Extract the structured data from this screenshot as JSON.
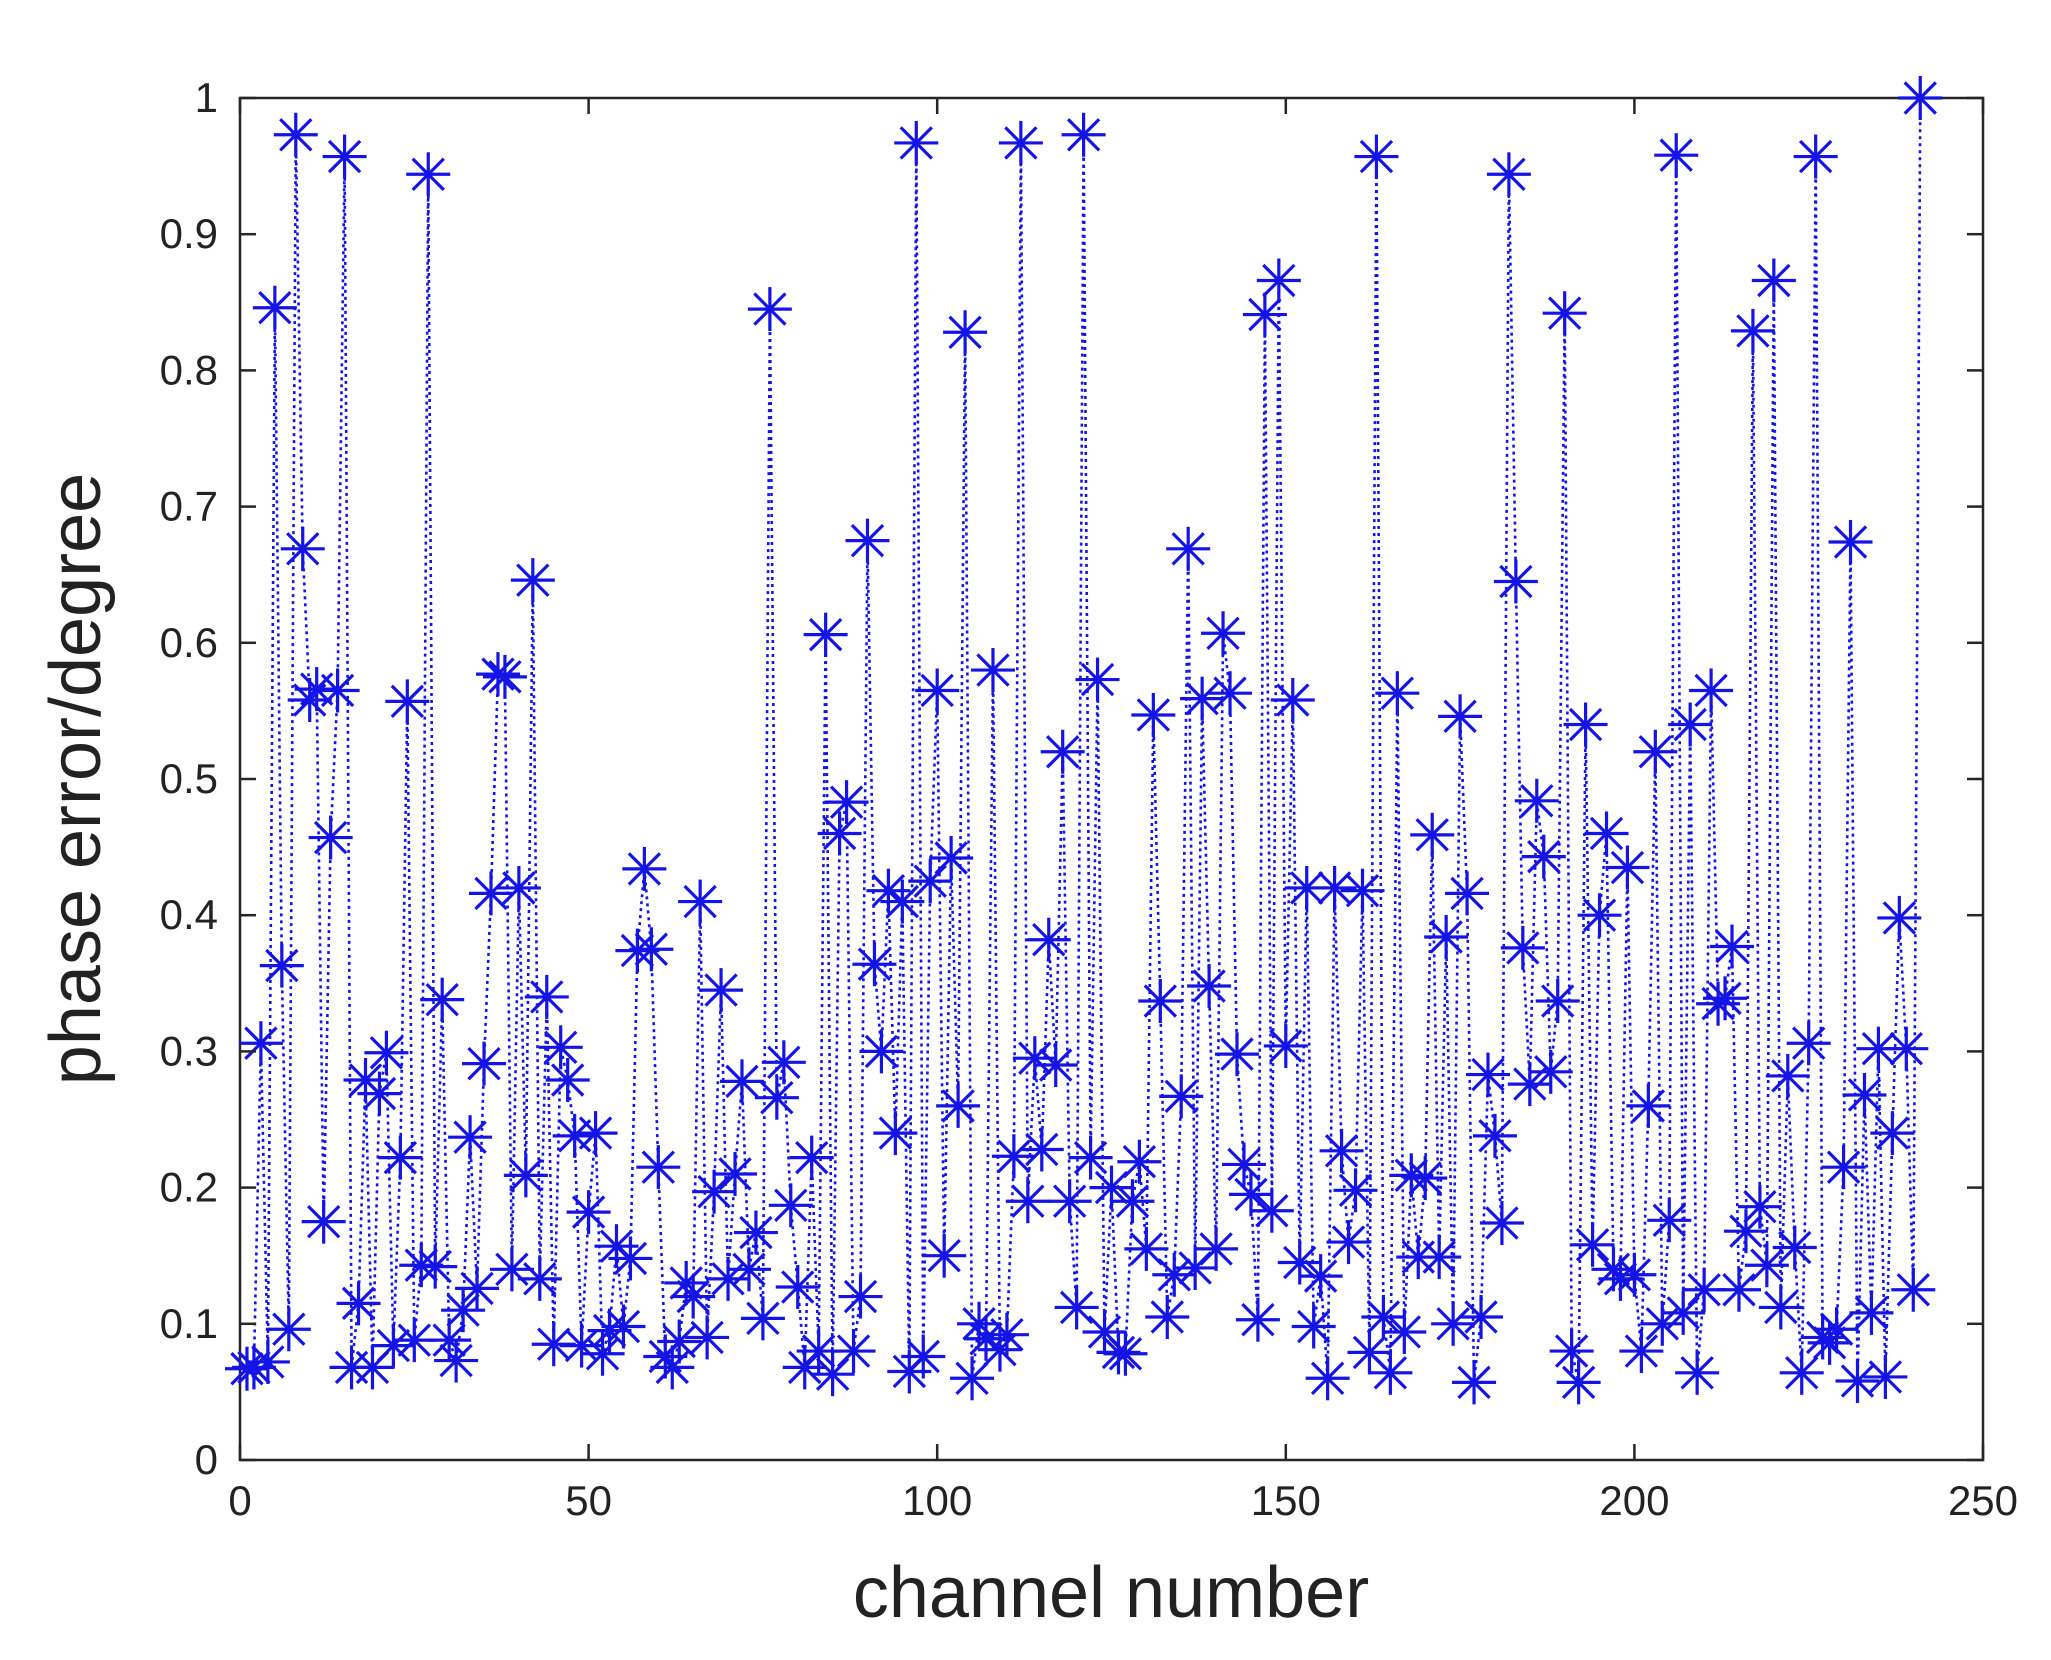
{
  "chart_data": {
    "type": "line",
    "title": "",
    "xlabel": "channel number",
    "ylabel": "phase error/degree",
    "xlim": [
      0,
      250
    ],
    "ylim": [
      0,
      1
    ],
    "xticks": [
      0,
      50,
      100,
      150,
      200,
      250
    ],
    "yticks": [
      0,
      0.1,
      0.2,
      0.3,
      0.4,
      0.5,
      0.6,
      0.7,
      0.8,
      0.9,
      1
    ],
    "xtick_labels": [
      "0",
      "50",
      "100",
      "150",
      "200",
      "250"
    ],
    "ytick_labels": [
      "0",
      "0.1",
      "0.2",
      "0.3",
      "0.4",
      "0.5",
      "0.6",
      "0.7",
      "0.8",
      "0.9",
      "1"
    ],
    "grid": false,
    "marker": "asterisk",
    "line_style": "dotted",
    "color": "#1414e6",
    "series": [
      {
        "x": [
          1,
          2,
          3,
          4,
          5,
          6,
          7,
          8,
          9,
          10,
          11,
          12,
          13,
          14,
          15,
          16,
          17,
          18,
          19,
          20,
          21,
          22,
          23,
          24,
          25,
          26,
          27,
          28,
          29,
          30,
          31,
          32,
          33,
          34,
          35,
          36,
          37,
          38,
          39,
          40,
          41,
          42,
          43,
          44,
          45,
          46,
          47,
          48,
          49,
          50,
          51,
          52,
          53,
          54,
          55,
          56,
          57,
          58,
          59,
          60,
          61,
          62,
          63,
          64,
          65,
          66,
          67,
          68,
          69,
          70,
          71,
          72,
          73,
          74,
          75,
          76,
          77,
          78,
          79,
          80,
          81,
          82,
          83,
          84,
          85,
          86,
          87,
          88,
          89,
          90,
          91,
          92,
          93,
          94,
          95,
          96,
          97,
          98,
          99,
          100,
          101,
          102,
          103,
          104,
          105,
          106,
          107,
          108,
          109,
          110,
          111,
          112,
          113,
          114,
          115,
          116,
          117,
          118,
          119,
          120,
          121,
          122,
          123,
          124,
          125,
          126,
          127,
          128,
          129,
          130,
          131,
          132,
          133,
          134,
          135,
          136,
          137,
          138,
          139,
          140,
          141,
          142,
          143,
          144,
          145,
          146,
          147,
          148,
          149,
          150,
          151,
          152,
          153,
          154,
          155,
          156,
          157,
          158,
          159,
          160,
          161,
          162,
          163,
          164,
          165,
          166,
          167,
          168,
          169,
          170,
          171,
          172,
          173,
          174,
          175,
          176,
          177,
          178,
          179,
          180,
          181,
          182,
          183,
          184,
          185,
          186,
          187,
          188,
          189,
          190,
          191,
          192,
          193,
          194,
          195,
          196,
          197,
          198,
          199,
          200,
          201,
          202,
          203,
          204,
          205,
          206,
          207,
          208,
          209,
          210,
          211,
          212,
          213,
          214,
          215,
          216,
          217,
          218,
          219,
          220,
          221,
          222,
          223,
          224,
          225,
          226,
          227,
          228,
          229,
          230,
          231,
          232,
          233,
          234,
          235,
          236,
          237,
          238,
          239,
          240,
          241
        ],
        "y": [
          0.067,
          0.068,
          0.306,
          0.072,
          0.846,
          0.363,
          0.096,
          0.973,
          0.669,
          0.558,
          0.566,
          0.175,
          0.457,
          0.565,
          0.957,
          0.068,
          0.115,
          0.279,
          0.068,
          0.269,
          0.299,
          0.084,
          0.222,
          0.557,
          0.088,
          0.143,
          0.944,
          0.142,
          0.338,
          0.088,
          0.073,
          0.11,
          0.237,
          0.126,
          0.291,
          0.416,
          0.577,
          0.575,
          0.14,
          0.42,
          0.209,
          0.646,
          0.133,
          0.34,
          0.085,
          0.303,
          0.279,
          0.238,
          0.084,
          0.182,
          0.24,
          0.078,
          0.095,
          0.157,
          0.098,
          0.148,
          0.374,
          0.434,
          0.375,
          0.215,
          0.076,
          0.068,
          0.087,
          0.13,
          0.12,
          0.41,
          0.09,
          0.197,
          0.345,
          0.133,
          0.21,
          0.278,
          0.14,
          0.167,
          0.104,
          0.845,
          0.266,
          0.292,
          0.187,
          0.127,
          0.068,
          0.222,
          0.08,
          0.606,
          0.063,
          0.46,
          0.483,
          0.08,
          0.12,
          0.675,
          0.364,
          0.3,
          0.418,
          0.24,
          0.41,
          0.065,
          0.967,
          0.076,
          0.425,
          0.565,
          0.15,
          0.442,
          0.26,
          0.828,
          0.06,
          0.1,
          0.089,
          0.58,
          0.081,
          0.092,
          0.223,
          0.967,
          0.19,
          0.295,
          0.228,
          0.382,
          0.29,
          0.52,
          0.19,
          0.112,
          0.973,
          0.222,
          0.573,
          0.094,
          0.2,
          0.079,
          0.078,
          0.19,
          0.219,
          0.155,
          0.547,
          0.337,
          0.105,
          0.136,
          0.267,
          0.669,
          0.141,
          0.559,
          0.348,
          0.155,
          0.607,
          0.563,
          0.298,
          0.217,
          0.195,
          0.103,
          0.841,
          0.183,
          0.866,
          0.304,
          0.558,
          0.145,
          0.42,
          0.098,
          0.135,
          0.06,
          0.42,
          0.227,
          0.16,
          0.198,
          0.418,
          0.079,
          0.957,
          0.105,
          0.064,
          0.563,
          0.094,
          0.209,
          0.149,
          0.207,
          0.459,
          0.149,
          0.384,
          0.1,
          0.546,
          0.416,
          0.057,
          0.105,
          0.283,
          0.238,
          0.174,
          0.944,
          0.645,
          0.376,
          0.276,
          0.484,
          0.443,
          0.285,
          0.337,
          0.842,
          0.08,
          0.057,
          0.54,
          0.158,
          0.4,
          0.46,
          0.14,
          0.133,
          0.435,
          0.136,
          0.08,
          0.26,
          0.52,
          0.1,
          0.176,
          0.958,
          0.108,
          0.54,
          0.064,
          0.125,
          0.565,
          0.335,
          0.339,
          0.377,
          0.125,
          0.168,
          0.829,
          0.186,
          0.143,
          0.866,
          0.112,
          0.282,
          0.156,
          0.064,
          0.306,
          0.957,
          0.09,
          0.086,
          0.096,
          0.215,
          0.674,
          0.058,
          0.268,
          0.108,
          0.302,
          0.061,
          0.24,
          0.398,
          0.302,
          0.125,
          1.0
        ]
      }
    ]
  }
}
